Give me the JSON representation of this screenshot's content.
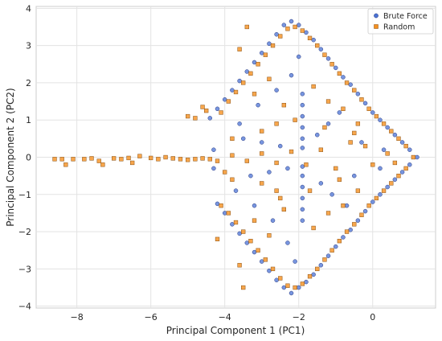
{
  "chart_data": {
    "type": "scatter",
    "title": "",
    "xlabel": "Principal Component 1 (PC1)",
    "ylabel": "Principal Component 2 (PC2)",
    "xlim": [
      -9.1,
      1.7
    ],
    "ylim": [
      -4.05,
      4.05
    ],
    "xticks": [
      -8,
      -6,
      -4,
      -2,
      0
    ],
    "yticks": [
      -4,
      -3,
      -2,
      -1,
      0,
      1,
      2,
      3,
      4
    ],
    "xtick_labels": [
      "−8",
      "−6",
      "−4",
      "−2",
      "0"
    ],
    "ytick_labels": [
      "−4",
      "−3",
      "−2",
      "−1",
      "0",
      "1",
      "2",
      "3",
      "4"
    ],
    "grid": true,
    "legend_position": "top-right",
    "series": [
      {
        "name": "Brute Force",
        "marker": "circle",
        "color": "#4a72d4",
        "edge": "#2b3b80",
        "points": [
          [
            1.2,
            0.0
          ],
          [
            1.0,
            0.2
          ],
          [
            0.8,
            0.4
          ],
          [
            0.6,
            0.6
          ],
          [
            0.4,
            0.8
          ],
          [
            0.2,
            1.0
          ],
          [
            0.0,
            1.2
          ],
          [
            -0.2,
            1.45
          ],
          [
            -0.4,
            1.7
          ],
          [
            -0.6,
            1.95
          ],
          [
            -0.8,
            2.15
          ],
          [
            -1.0,
            2.4
          ],
          [
            -1.2,
            2.65
          ],
          [
            -1.4,
            2.9
          ],
          [
            -1.6,
            3.15
          ],
          [
            -1.8,
            3.35
          ],
          [
            -2.0,
            3.55
          ],
          [
            -2.2,
            3.65
          ],
          [
            -2.4,
            3.55
          ],
          [
            -2.6,
            3.3
          ],
          [
            -2.8,
            3.05
          ],
          [
            -3.0,
            2.8
          ],
          [
            -3.2,
            2.55
          ],
          [
            -3.4,
            2.3
          ],
          [
            -3.6,
            2.05
          ],
          [
            -3.8,
            1.8
          ],
          [
            -4.0,
            1.55
          ],
          [
            -4.2,
            1.3
          ],
          [
            -4.4,
            1.05
          ],
          [
            1.0,
            -0.2
          ],
          [
            0.8,
            -0.4
          ],
          [
            0.6,
            -0.6
          ],
          [
            0.4,
            -0.8
          ],
          [
            0.2,
            -1.0
          ],
          [
            0.0,
            -1.2
          ],
          [
            -0.2,
            -1.45
          ],
          [
            -0.4,
            -1.7
          ],
          [
            -0.6,
            -1.95
          ],
          [
            -0.8,
            -2.15
          ],
          [
            -1.0,
            -2.4
          ],
          [
            -1.2,
            -2.65
          ],
          [
            -1.4,
            -2.9
          ],
          [
            -1.6,
            -3.15
          ],
          [
            -1.8,
            -3.35
          ],
          [
            -2.0,
            -3.5
          ],
          [
            -2.2,
            -3.65
          ],
          [
            -2.4,
            -3.5
          ],
          [
            -2.6,
            -3.3
          ],
          [
            -2.8,
            -3.05
          ],
          [
            -3.0,
            -2.8
          ],
          [
            -3.2,
            -2.55
          ],
          [
            -3.4,
            -2.3
          ],
          [
            -3.6,
            -2.05
          ],
          [
            -3.8,
            -1.8
          ],
          [
            -4.0,
            -1.5
          ],
          [
            -4.2,
            -1.25
          ],
          [
            -1.9,
            1.7
          ],
          [
            -1.9,
            1.4
          ],
          [
            -1.9,
            1.1
          ],
          [
            -1.9,
            0.8
          ],
          [
            -1.9,
            0.5
          ],
          [
            -1.9,
            0.25
          ],
          [
            -1.9,
            -0.25
          ],
          [
            -1.9,
            -0.5
          ],
          [
            -1.9,
            -0.8
          ],
          [
            -1.9,
            -1.1
          ],
          [
            -1.9,
            -1.4
          ],
          [
            -1.9,
            -1.7
          ],
          [
            -3.5,
            0.5
          ],
          [
            -3.0,
            0.4
          ],
          [
            -2.5,
            0.3
          ],
          [
            -2.3,
            -0.3
          ],
          [
            -2.8,
            -0.4
          ],
          [
            -3.3,
            -0.5
          ],
          [
            -1.5,
            0.6
          ],
          [
            -1.2,
            0.9
          ],
          [
            -0.9,
            1.2
          ],
          [
            -1.4,
            -0.7
          ],
          [
            -1.1,
            -1.0
          ],
          [
            -0.7,
            -1.3
          ],
          [
            -2.6,
            1.8
          ],
          [
            -3.1,
            1.4
          ],
          [
            -2.2,
            2.2
          ],
          [
            -2.7,
            -1.7
          ],
          [
            -3.2,
            -1.3
          ],
          [
            -2.3,
            -2.3
          ],
          [
            -3.6,
            0.9
          ],
          [
            -3.7,
            -0.9
          ],
          [
            -4.3,
            0.2
          ],
          [
            -4.3,
            -0.3
          ],
          [
            -2.0,
            2.7
          ],
          [
            -2.1,
            -2.8
          ],
          [
            -0.3,
            0.4
          ],
          [
            -0.5,
            -0.5
          ],
          [
            0.3,
            0.2
          ],
          [
            0.2,
            -0.3
          ]
        ]
      },
      {
        "name": "Random",
        "marker": "square",
        "color": "#f5901f",
        "edge": "#8a4f10",
        "points": [
          [
            -8.6,
            -0.05
          ],
          [
            -8.4,
            -0.05
          ],
          [
            -8.3,
            -0.2
          ],
          [
            -8.1,
            -0.05
          ],
          [
            -7.8,
            -0.05
          ],
          [
            -7.6,
            -0.03
          ],
          [
            -7.4,
            -0.1
          ],
          [
            -7.3,
            -0.2
          ],
          [
            -7.0,
            -0.03
          ],
          [
            -6.8,
            -0.05
          ],
          [
            -6.6,
            -0.02
          ],
          [
            -6.5,
            -0.15
          ],
          [
            -6.3,
            0.03
          ],
          [
            -6.0,
            -0.02
          ],
          [
            -5.8,
            -0.05
          ],
          [
            -5.6,
            0.0
          ],
          [
            -5.4,
            -0.03
          ],
          [
            -5.2,
            -0.05
          ],
          [
            -5.0,
            -0.07
          ],
          [
            -4.8,
            -0.05
          ],
          [
            -4.6,
            -0.03
          ],
          [
            -4.4,
            -0.05
          ],
          [
            -4.2,
            -0.1
          ],
          [
            -5.0,
            1.1
          ],
          [
            -4.8,
            1.05
          ],
          [
            -4.5,
            1.25
          ],
          [
            -4.6,
            1.35
          ],
          [
            1.1,
            0.0
          ],
          [
            0.9,
            0.3
          ],
          [
            0.7,
            0.5
          ],
          [
            0.5,
            0.7
          ],
          [
            0.3,
            0.9
          ],
          [
            0.1,
            1.1
          ],
          [
            -0.1,
            1.3
          ],
          [
            -0.3,
            1.55
          ],
          [
            -0.5,
            1.8
          ],
          [
            -0.7,
            2.0
          ],
          [
            -0.9,
            2.25
          ],
          [
            -1.1,
            2.5
          ],
          [
            -1.3,
            2.75
          ],
          [
            -1.5,
            3.0
          ],
          [
            -1.7,
            3.2
          ],
          [
            -1.9,
            3.4
          ],
          [
            -2.1,
            3.5
          ],
          [
            -2.3,
            3.45
          ],
          [
            -2.5,
            3.25
          ],
          [
            -2.7,
            3.0
          ],
          [
            -2.9,
            2.75
          ],
          [
            -3.1,
            2.5
          ],
          [
            -3.3,
            2.25
          ],
          [
            -3.5,
            2.0
          ],
          [
            -3.7,
            1.75
          ],
          [
            -3.9,
            1.5
          ],
          [
            -4.1,
            1.2
          ],
          [
            0.9,
            -0.3
          ],
          [
            0.7,
            -0.5
          ],
          [
            0.5,
            -0.7
          ],
          [
            0.3,
            -0.9
          ],
          [
            0.1,
            -1.1
          ],
          [
            -0.1,
            -1.3
          ],
          [
            -0.3,
            -1.55
          ],
          [
            -0.5,
            -1.8
          ],
          [
            -0.7,
            -2.0
          ],
          [
            -0.9,
            -2.25
          ],
          [
            -1.1,
            -2.5
          ],
          [
            -1.3,
            -2.75
          ],
          [
            -1.5,
            -3.0
          ],
          [
            -1.7,
            -3.2
          ],
          [
            -1.9,
            -3.4
          ],
          [
            -2.1,
            -3.5
          ],
          [
            -2.3,
            -3.45
          ],
          [
            -2.5,
            -3.25
          ],
          [
            -2.7,
            -3.0
          ],
          [
            -2.9,
            -2.75
          ],
          [
            -3.1,
            -2.5
          ],
          [
            -3.3,
            -2.25
          ],
          [
            -3.5,
            -2.0
          ],
          [
            -3.7,
            -1.75
          ],
          [
            -3.9,
            -1.5
          ],
          [
            -4.1,
            -1.3
          ],
          [
            -3.4,
            3.5
          ],
          [
            -3.6,
            2.9
          ],
          [
            -2.8,
            2.1
          ],
          [
            -3.2,
            1.7
          ],
          [
            -2.4,
            1.4
          ],
          [
            -1.6,
            1.9
          ],
          [
            -1.2,
            1.5
          ],
          [
            -0.8,
            1.3
          ],
          [
            -0.4,
            0.9
          ],
          [
            -2.6,
            0.9
          ],
          [
            -3.0,
            0.7
          ],
          [
            -3.8,
            0.5
          ],
          [
            -4.0,
            -0.4
          ],
          [
            -3.5,
            -3.5
          ],
          [
            -3.6,
            -2.9
          ],
          [
            -2.8,
            -2.1
          ],
          [
            -3.2,
            -1.7
          ],
          [
            -2.4,
            -1.4
          ],
          [
            -1.6,
            -1.9
          ],
          [
            -1.2,
            -1.5
          ],
          [
            -0.8,
            -1.3
          ],
          [
            -0.4,
            -0.9
          ],
          [
            -2.6,
            -0.9
          ],
          [
            -3.0,
            -0.7
          ],
          [
            -3.8,
            -0.6
          ],
          [
            -4.2,
            -2.2
          ],
          [
            -0.2,
            0.3
          ],
          [
            0.0,
            -0.2
          ],
          [
            -0.6,
            0.4
          ],
          [
            -1.0,
            -0.3
          ],
          [
            -1.4,
            0.2
          ],
          [
            -1.8,
            -0.2
          ],
          [
            -2.2,
            0.15
          ],
          [
            -2.6,
            -0.15
          ],
          [
            -3.0,
            0.1
          ],
          [
            -3.4,
            -0.1
          ],
          [
            -3.8,
            0.05
          ],
          [
            0.4,
            0.1
          ],
          [
            0.6,
            -0.15
          ],
          [
            -0.5,
            0.65
          ],
          [
            -0.9,
            -0.6
          ],
          [
            -1.3,
            0.8
          ],
          [
            -1.7,
            -0.9
          ],
          [
            -2.1,
            1.0
          ],
          [
            -2.5,
            -1.1
          ]
        ]
      }
    ]
  }
}
